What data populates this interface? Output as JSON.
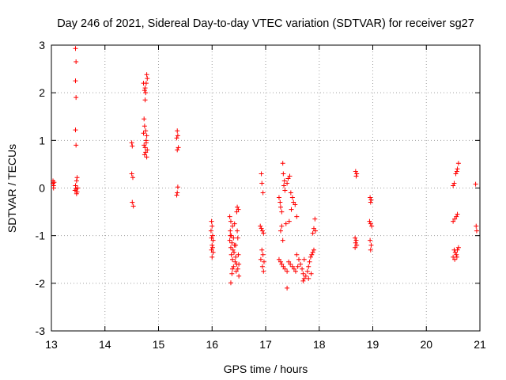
{
  "chart_data": {
    "type": "scatter",
    "title": "Day 246 of 2021, Sidereal Day-to-day VTEC variation (SDTVAR) for receiver sg27",
    "xlabel": "GPS time / hours",
    "ylabel": "SDTVAR / TECUs",
    "xlim": [
      13,
      21
    ],
    "ylim": [
      -3,
      3
    ],
    "xticks": [
      13,
      14,
      15,
      16,
      17,
      18,
      19,
      20,
      21
    ],
    "yticks": [
      -3,
      -2,
      -1,
      0,
      1,
      2,
      3
    ],
    "grid": true,
    "marker": "+",
    "color": "#ff0000",
    "series": [
      {
        "name": "sg27",
        "points": [
          [
            13.03,
            0.15
          ],
          [
            13.03,
            0.1
          ],
          [
            13.04,
            0.05
          ],
          [
            13.04,
            0.0
          ],
          [
            13.05,
            0.12
          ],
          [
            13.45,
            2.93
          ],
          [
            13.46,
            2.65
          ],
          [
            13.45,
            2.25
          ],
          [
            13.46,
            1.9
          ],
          [
            13.45,
            1.22
          ],
          [
            13.46,
            0.9
          ],
          [
            13.48,
            0.22
          ],
          [
            13.47,
            0.15
          ],
          [
            13.45,
            0.05
          ],
          [
            13.46,
            -0.02
          ],
          [
            13.44,
            -0.05
          ],
          [
            13.48,
            -0.08
          ],
          [
            13.47,
            -0.12
          ],
          [
            13.49,
            0.0
          ],
          [
            14.5,
            0.95
          ],
          [
            14.51,
            0.88
          ],
          [
            14.5,
            0.3
          ],
          [
            14.52,
            0.22
          ],
          [
            14.51,
            -0.3
          ],
          [
            14.53,
            -0.38
          ],
          [
            14.72,
            2.2
          ],
          [
            14.75,
            2.1
          ],
          [
            14.74,
            2.05
          ],
          [
            14.76,
            2.0
          ],
          [
            14.78,
            2.38
          ],
          [
            14.79,
            2.3
          ],
          [
            14.77,
            2.2
          ],
          [
            14.75,
            1.85
          ],
          [
            14.73,
            1.45
          ],
          [
            14.74,
            1.3
          ],
          [
            14.76,
            1.2
          ],
          [
            14.78,
            1.1
          ],
          [
            14.72,
            1.15
          ],
          [
            14.77,
            0.95
          ],
          [
            14.75,
            0.85
          ],
          [
            14.79,
            0.8
          ],
          [
            14.74,
            0.7
          ],
          [
            14.76,
            0.75
          ],
          [
            14.78,
            0.65
          ],
          [
            14.73,
            0.9
          ],
          [
            14.77,
            1.0
          ],
          [
            15.35,
            1.2
          ],
          [
            15.36,
            1.1
          ],
          [
            15.34,
            1.05
          ],
          [
            15.37,
            0.85
          ],
          [
            15.35,
            0.8
          ],
          [
            15.36,
            0.02
          ],
          [
            15.35,
            -0.1
          ],
          [
            15.34,
            -0.15
          ],
          [
            15.99,
            -0.7
          ],
          [
            16.0,
            -0.8
          ],
          [
            15.98,
            -0.9
          ],
          [
            16.01,
            -1.0
          ],
          [
            15.99,
            -1.05
          ],
          [
            16.02,
            -1.1
          ],
          [
            16.0,
            -1.2
          ],
          [
            16.01,
            -1.25
          ],
          [
            15.99,
            -1.3
          ],
          [
            16.02,
            -1.35
          ],
          [
            16.0,
            -1.45
          ],
          [
            16.33,
            -0.6
          ],
          [
            16.35,
            -0.7
          ],
          [
            16.38,
            -0.8
          ],
          [
            16.34,
            -0.9
          ],
          [
            16.36,
            -1.0
          ],
          [
            16.4,
            -1.05
          ],
          [
            16.33,
            -1.1
          ],
          [
            16.37,
            -1.15
          ],
          [
            16.42,
            -1.2
          ],
          [
            16.35,
            -1.25
          ],
          [
            16.39,
            -1.3
          ],
          [
            16.41,
            -1.35
          ],
          [
            16.36,
            -1.4
          ],
          [
            16.44,
            -1.45
          ],
          [
            16.38,
            -1.5
          ],
          [
            16.43,
            -1.55
          ],
          [
            16.46,
            -1.6
          ],
          [
            16.4,
            -1.65
          ],
          [
            16.48,
            -1.7
          ],
          [
            16.45,
            -1.75
          ],
          [
            16.37,
            -1.8
          ],
          [
            16.5,
            -1.85
          ],
          [
            16.35,
            -1.99
          ],
          [
            16.42,
            -0.75
          ],
          [
            16.47,
            -0.9
          ],
          [
            16.48,
            -1.05
          ],
          [
            16.44,
            -1.2
          ],
          [
            16.49,
            -1.4
          ],
          [
            16.5,
            -1.6
          ],
          [
            16.47,
            -0.4
          ],
          [
            16.49,
            -0.45
          ],
          [
            16.46,
            -0.5
          ],
          [
            16.34,
            -1.0
          ],
          [
            16.38,
            -1.7
          ],
          [
            16.92,
            0.3
          ],
          [
            16.93,
            0.1
          ],
          [
            16.95,
            -0.1
          ],
          [
            16.9,
            -0.8
          ],
          [
            16.92,
            -0.85
          ],
          [
            16.94,
            -0.9
          ],
          [
            16.96,
            -0.95
          ],
          [
            16.93,
            -1.3
          ],
          [
            16.95,
            -1.4
          ],
          [
            16.91,
            -1.5
          ],
          [
            16.97,
            -1.55
          ],
          [
            16.94,
            -1.65
          ],
          [
            16.96,
            -1.75
          ],
          [
            17.25,
            -0.2
          ],
          [
            17.27,
            -0.3
          ],
          [
            17.28,
            -0.4
          ],
          [
            17.3,
            -0.5
          ],
          [
            17.32,
            0.52
          ],
          [
            17.33,
            0.3
          ],
          [
            17.35,
            0.15
          ],
          [
            17.34,
            0.05
          ],
          [
            17.36,
            -0.05
          ],
          [
            17.4,
            0.1
          ],
          [
            17.42,
            0.2
          ],
          [
            17.45,
            0.25
          ],
          [
            17.47,
            -0.1
          ],
          [
            17.5,
            -0.2
          ],
          [
            17.52,
            -0.3
          ],
          [
            17.55,
            -0.35
          ],
          [
            17.48,
            -0.45
          ],
          [
            17.58,
            -0.6
          ],
          [
            17.38,
            -0.75
          ],
          [
            17.44,
            -0.7
          ],
          [
            17.3,
            -0.8
          ],
          [
            17.28,
            -0.9
          ],
          [
            17.32,
            -1.1
          ],
          [
            17.25,
            -1.5
          ],
          [
            17.28,
            -1.55
          ],
          [
            17.3,
            -1.6
          ],
          [
            17.33,
            -1.65
          ],
          [
            17.36,
            -1.7
          ],
          [
            17.4,
            -1.75
          ],
          [
            17.43,
            -1.55
          ],
          [
            17.46,
            -1.6
          ],
          [
            17.5,
            -1.65
          ],
          [
            17.53,
            -1.7
          ],
          [
            17.56,
            -1.75
          ],
          [
            17.6,
            -1.65
          ],
          [
            17.62,
            -1.5
          ],
          [
            17.65,
            -1.6
          ],
          [
            17.68,
            -1.7
          ],
          [
            17.7,
            -1.8
          ],
          [
            17.72,
            -1.9
          ],
          [
            17.75,
            -1.85
          ],
          [
            17.78,
            -1.75
          ],
          [
            17.8,
            -1.65
          ],
          [
            17.82,
            -1.55
          ],
          [
            17.84,
            -1.45
          ],
          [
            17.86,
            -1.4
          ],
          [
            17.88,
            -1.35
          ],
          [
            17.9,
            -1.3
          ],
          [
            17.4,
            -2.1
          ],
          [
            17.7,
            -1.95
          ],
          [
            17.8,
            -1.9
          ],
          [
            17.58,
            -1.4
          ],
          [
            17.72,
            -1.5
          ],
          [
            17.85,
            -1.8
          ],
          [
            17.92,
            -0.65
          ],
          [
            17.9,
            -0.85
          ],
          [
            17.93,
            -0.9
          ],
          [
            17.88,
            -0.95
          ],
          [
            18.68,
            0.35
          ],
          [
            18.7,
            0.3
          ],
          [
            18.69,
            0.25
          ],
          [
            18.67,
            -1.05
          ],
          [
            18.69,
            -1.1
          ],
          [
            18.68,
            -1.15
          ],
          [
            18.7,
            -1.2
          ],
          [
            18.67,
            -1.25
          ],
          [
            18.95,
            -0.2
          ],
          [
            18.97,
            -0.25
          ],
          [
            18.96,
            -0.3
          ],
          [
            18.94,
            -0.7
          ],
          [
            18.96,
            -0.75
          ],
          [
            18.98,
            -0.8
          ],
          [
            18.95,
            -1.1
          ],
          [
            18.97,
            -1.2
          ],
          [
            18.96,
            -1.3
          ],
          [
            20.5,
            0.05
          ],
          [
            20.52,
            0.1
          ],
          [
            20.55,
            0.3
          ],
          [
            20.57,
            0.35
          ],
          [
            20.58,
            0.4
          ],
          [
            20.6,
            0.52
          ],
          [
            20.5,
            -0.7
          ],
          [
            20.53,
            -0.65
          ],
          [
            20.56,
            -0.6
          ],
          [
            20.58,
            -0.55
          ],
          [
            20.52,
            -1.3
          ],
          [
            20.54,
            -1.35
          ],
          [
            20.56,
            -1.4
          ],
          [
            20.58,
            -1.3
          ],
          [
            20.6,
            -1.25
          ],
          [
            20.5,
            -1.45
          ],
          [
            20.53,
            -1.5
          ],
          [
            20.57,
            -1.45
          ],
          [
            20.92,
            0.08
          ],
          [
            20.93,
            -0.8
          ],
          [
            20.94,
            -0.9
          ]
        ]
      }
    ]
  }
}
